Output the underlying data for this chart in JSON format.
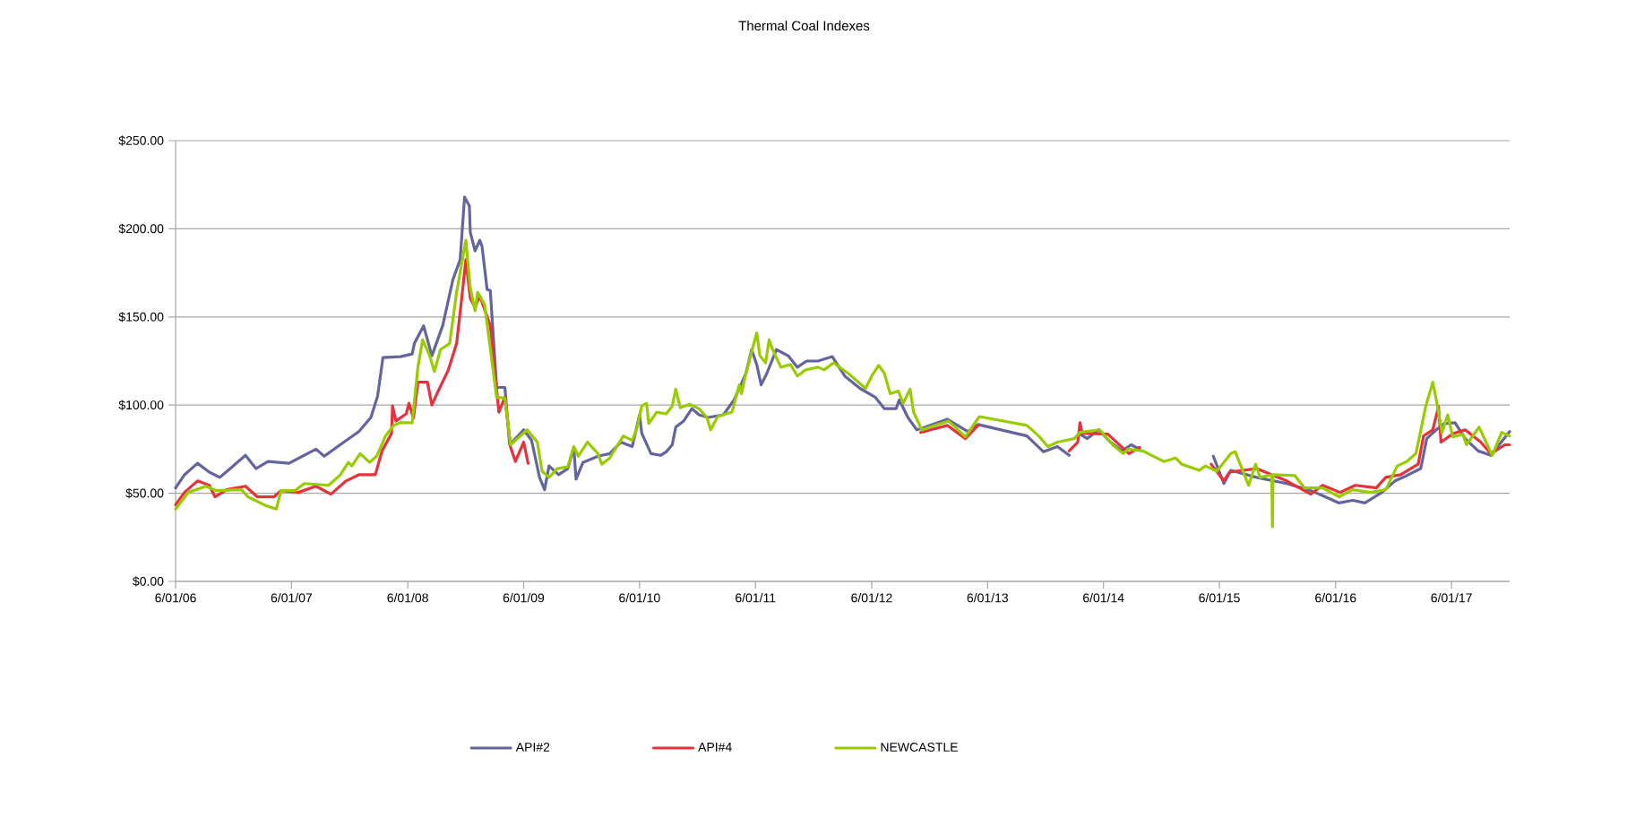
{
  "chart_data": {
    "type": "line",
    "title": "Thermal Coal Indexes",
    "xlim": [
      "2006-06-01",
      "2017-12-01"
    ],
    "xticks": [
      {
        "value": "2006-06-01",
        "label": "6/01/06"
      },
      {
        "value": "2007-06-01",
        "label": "6/01/07"
      },
      {
        "value": "2008-06-01",
        "label": "6/01/08"
      },
      {
        "value": "2009-06-01",
        "label": "6/01/09"
      },
      {
        "value": "2010-06-01",
        "label": "6/01/10"
      },
      {
        "value": "2011-06-01",
        "label": "6/01/11"
      },
      {
        "value": "2012-06-01",
        "label": "6/01/12"
      },
      {
        "value": "2013-06-01",
        "label": "6/01/13"
      },
      {
        "value": "2014-06-01",
        "label": "6/01/14"
      },
      {
        "value": "2015-06-01",
        "label": "6/01/15"
      },
      {
        "value": "2016-06-01",
        "label": "6/01/16"
      },
      {
        "value": "2017-06-01",
        "label": "6/01/17"
      }
    ],
    "ylim": [
      0,
      250
    ],
    "yticks": [
      {
        "value": 0,
        "label": "$0.00"
      },
      {
        "value": 50,
        "label": "$50.00"
      },
      {
        "value": 100,
        "label": "$100.00"
      },
      {
        "value": 150,
        "label": "$150.00"
      },
      {
        "value": 200,
        "label": "$200.00"
      },
      {
        "value": 250,
        "label": "$250.00"
      }
    ],
    "grid": "y",
    "legend": "bottom",
    "marker": "none",
    "line_style": "solid",
    "series": [
      {
        "name": "API#2",
        "color": "#64649f",
        "x": [
          "2006-06-01",
          "2006-06-29",
          "2006-08-09",
          "2006-09-15",
          "2006-10-18",
          "2006-11-20",
          "2007-01-07",
          "2007-02-09",
          "2007-03-19",
          "2007-05-24",
          "2007-08-17",
          "2007-09-12",
          "2007-11-13",
          "2007-12-30",
          "2008-02-06",
          "2008-02-27",
          "2008-03-15",
          "2008-05-09",
          "2008-06-15",
          "2008-06-22",
          "2008-07-21",
          "2008-08-16",
          "2008-09-19",
          "2008-10-21",
          "2008-11-13",
          "2008-11-27",
          "2008-12-12",
          "2008-12-15",
          "2008-12-30",
          "2009-01-14",
          "2009-01-21",
          "2009-02-06",
          "2009-02-16",
          "2009-03-08",
          "2009-04-03",
          "2009-04-18",
          "2009-06-01",
          "2009-06-26",
          "2009-07-21",
          "2009-08-06",
          "2009-08-20",
          "2009-09-19",
          "2009-10-18",
          "2009-11-06",
          "2009-11-13",
          "2009-12-05",
          "2010-01-21",
          "2010-02-27",
          "2010-04-03",
          "2010-05-09",
          "2010-06-01",
          "2010-06-08",
          "2010-07-07",
          "2010-08-06",
          "2010-08-24",
          "2010-09-12",
          "2010-09-23",
          "2010-10-18",
          "2010-11-13",
          "2010-12-05",
          "2011-01-03",
          "2011-02-20",
          "2011-03-26",
          "2011-05-02",
          "2011-05-20",
          "2011-06-05",
          "2011-06-19",
          "2011-07-07",
          "2011-08-06",
          "2011-09-12",
          "2011-10-11",
          "2011-11-09",
          "2011-12-15",
          "2012-01-29",
          "2012-03-08",
          "2012-04-25",
          "2012-06-12",
          "2012-07-11",
          "2012-08-17",
          "2012-08-27",
          "2012-09-23",
          "2012-10-21",
          "2012-11-09",
          "2013-01-25",
          "2013-03-30",
          "2013-05-02",
          "2013-10-03",
          "2013-11-24",
          "2014-01-07",
          "2014-02-13",
          "2014-03-01",
          "2014-03-19",
          "2014-04-11",
          "2014-05-17",
          "2014-06-23",
          "2014-07-29",
          "2014-08-27",
          "2014-09-23",
          "2015-01-01",
          "2015-05-13",
          "2015-06-15",
          "2015-07-07",
          "2015-09-26",
          "2015-12-30",
          "2016-03-15",
          "2016-04-29",
          "2016-06-12",
          "2016-07-25",
          "2016-09-01",
          "2016-10-25",
          "2016-12-05",
          "2017-01-11",
          "2017-02-24",
          "2017-03-15",
          "2017-04-14",
          "2017-05-09",
          "2017-06-12",
          "2017-07-14",
          "2017-08-24",
          "2017-10-03",
          "2017-10-29",
          "2017-12-01"
        ],
        "values": [
          53,
          60.5,
          67,
          62,
          59,
          64,
          71.5,
          64,
          68,
          67,
          75,
          71,
          79,
          85,
          93,
          105,
          127,
          127.5,
          129,
          135,
          145,
          128,
          145,
          171,
          182.5,
          218,
          213,
          198,
          187.5,
          193.5,
          190,
          165.5,
          165,
          110,
          110,
          77.5,
          86,
          80,
          59,
          52,
          65.5,
          60.5,
          64,
          76,
          58,
          67.5,
          71,
          72.5,
          79,
          76.5,
          94.5,
          84,
          72.5,
          71.5,
          73.5,
          77.5,
          87.5,
          91,
          98,
          94.5,
          93,
          94.5,
          103,
          118,
          131.5,
          123,
          111.5,
          118,
          131.5,
          128,
          121.5,
          125,
          125,
          127.5,
          116.5,
          109.5,
          104.5,
          98,
          98,
          103,
          93,
          86,
          87,
          92,
          85,
          89,
          82.5,
          73.5,
          76.5,
          71.5,
          null,
          83.5,
          81,
          86,
          79,
          74,
          77.5,
          75,
          null,
          71,
          55.5,
          63,
          59,
          55.5,
          51.5,
          48,
          44.5,
          46,
          44.5,
          50.5,
          57,
          60,
          64,
          81,
          86,
          89.5,
          90,
          81,
          74,
          71.5,
          77.5,
          85
        ]
      },
      {
        "name": "API#4",
        "color": "#e5323b",
        "x": [
          "2006-06-01",
          "2006-06-29",
          "2006-08-09",
          "2006-09-15",
          "2006-10-03",
          "2006-11-09",
          "2007-01-07",
          "2007-02-13",
          "2007-04-07",
          "2007-04-29",
          "2007-06-23",
          "2007-08-17",
          "2007-10-03",
          "2007-11-20",
          "2007-12-30",
          "2008-02-20",
          "2008-03-12",
          "2008-04-11",
          "2008-04-14",
          "2008-04-25",
          "2008-05-27",
          "2008-06-05",
          "2008-06-19",
          "2008-07-03",
          "2008-08-02",
          "2008-08-16",
          "2008-09-05",
          "2008-10-07",
          "2008-11-02",
          "2008-11-17",
          "2008-12-01",
          "2008-12-15",
          "2008-12-30",
          "2009-01-14",
          "2009-02-16",
          "2009-03-15",
          "2009-04-03",
          "2009-04-21",
          "2009-05-06",
          "2009-06-01",
          "2009-06-15",
          "2010-01-01",
          "2012-11-02",
          "2013-01-25",
          "2013-03-23",
          "2013-05-02",
          "2013-08-01",
          "2014-02-13",
          "2014-03-12",
          "2014-03-19",
          "2014-03-26",
          "2014-06-15",
          "2014-08-20",
          "2014-09-23",
          "2015-01-01",
          "2015-05-06",
          "2015-06-15",
          "2015-07-03",
          "2015-09-26",
          "2015-12-30",
          "2016-03-15",
          "2016-04-21",
          "2016-06-15",
          "2016-08-02",
          "2016-10-07",
          "2016-11-06",
          "2016-12-23",
          "2017-02-16",
          "2017-03-05",
          "2017-04-03",
          "2017-04-21",
          "2017-04-29",
          "2017-06-08",
          "2017-07-14",
          "2017-09-01",
          "2017-10-03",
          "2017-11-16",
          "2017-12-01"
        ],
        "values": [
          43.5,
          50.5,
          57,
          54.5,
          48,
          52,
          54,
          48,
          48,
          51.5,
          50.5,
          54,
          49.5,
          57,
          60.5,
          60.5,
          74,
          84,
          99.5,
          91,
          95,
          101,
          92.5,
          113,
          113,
          100,
          108,
          120,
          135,
          159,
          182.5,
          160.5,
          155.5,
          162,
          145,
          96,
          104.5,
          76,
          68,
          79,
          67,
          null,
          84.5,
          88.5,
          81,
          88.5,
          null,
          74,
          79,
          90,
          84,
          83.5,
          72.5,
          76,
          null,
          66.5,
          57,
          62,
          64,
          57,
          49.5,
          54.5,
          50.5,
          54.5,
          53,
          59,
          60.5,
          66.5,
          82.5,
          86,
          99,
          79,
          84,
          86,
          79,
          72.5,
          77.5,
          77.5
        ]
      },
      {
        "name": "NEWCASTLE",
        "color": "#99cc00",
        "x": [
          "2006-06-01",
          "2006-07-11",
          "2006-09-05",
          "2006-10-07",
          "2006-12-26",
          "2007-01-14",
          "2007-03-12",
          "2007-04-14",
          "2007-04-29",
          "2007-06-12",
          "2007-07-11",
          "2007-09-26",
          "2007-11-02",
          "2007-11-27",
          "2007-12-08",
          "2008-01-03",
          "2008-02-02",
          "2008-02-24",
          "2008-03-23",
          "2008-04-18",
          "2008-05-09",
          "2008-06-15",
          "2008-07-03",
          "2008-07-18",
          "2008-08-09",
          "2008-08-24",
          "2008-09-12",
          "2008-10-11",
          "2008-11-02",
          "2008-12-01",
          "2008-12-15",
          "2008-12-30",
          "2009-01-07",
          "2009-01-29",
          "2009-03-08",
          "2009-04-03",
          "2009-04-21",
          "2009-06-12",
          "2009-07-14",
          "2009-07-29",
          "2009-08-20",
          "2009-09-15",
          "2009-10-18",
          "2009-11-06",
          "2009-11-20",
          "2009-12-19",
          "2010-01-21",
          "2010-02-02",
          "2010-02-27",
          "2010-04-11",
          "2010-05-09",
          "2010-05-24",
          "2010-06-08",
          "2010-06-23",
          "2010-06-30",
          "2010-07-25",
          "2010-08-24",
          "2010-09-12",
          "2010-09-23",
          "2010-10-07",
          "2010-11-06",
          "2010-12-05",
          "2010-12-30",
          "2011-01-11",
          "2011-02-02",
          "2011-03-19",
          "2011-04-11",
          "2011-04-18",
          "2011-05-02",
          "2011-06-05",
          "2011-06-15",
          "2011-07-03",
          "2011-07-14",
          "2011-07-25",
          "2011-08-20",
          "2011-09-19",
          "2011-10-11",
          "2011-11-06",
          "2011-12-15",
          "2012-01-03",
          "2012-02-02",
          "2012-03-19",
          "2012-05-13",
          "2012-06-01",
          "2012-06-23",
          "2012-07-11",
          "2012-07-29",
          "2012-08-24",
          "2012-09-08",
          "2012-09-30",
          "2012-10-11",
          "2012-11-06",
          "2013-01-29",
          "2013-03-23",
          "2013-05-06",
          "2013-10-03",
          "2013-11-09",
          "2013-12-08",
          "2014-01-07",
          "2014-03-01",
          "2014-03-19",
          "2014-05-20",
          "2014-06-30",
          "2014-08-02",
          "2014-08-17",
          "2014-10-03",
          "2014-12-08",
          "2015-01-14",
          "2015-02-02",
          "2015-03-30",
          "2015-04-18",
          "2015-05-24",
          "2015-07-07",
          "2015-07-21",
          "2015-09-01",
          "2015-09-23",
          "2015-10-07",
          "2015-11-13",
          "2015-11-15",
          "2015-11-17",
          "2016-01-25",
          "2016-02-24",
          "2016-04-21",
          "2016-06-12",
          "2016-07-25",
          "2016-09-19",
          "2016-11-06",
          "2016-12-12",
          "2017-01-11",
          "2017-02-09",
          "2017-03-12",
          "2017-04-03",
          "2017-04-14",
          "2017-05-02",
          "2017-05-20",
          "2017-06-05",
          "2017-07-07",
          "2017-07-18",
          "2017-08-27",
          "2017-10-07",
          "2017-11-06",
          "2017-12-01"
        ],
        "values": [
          41,
          50.5,
          54,
          51.5,
          52,
          48,
          43,
          41,
          51.5,
          51.5,
          55.5,
          54.5,
          60.5,
          67.5,
          65.5,
          72.5,
          67.5,
          71,
          82.5,
          88.5,
          90,
          90,
          121.5,
          137,
          128,
          119,
          131.5,
          135,
          164,
          193.5,
          166.5,
          153.5,
          164,
          157,
          104.5,
          104,
          77.5,
          86,
          79,
          62.5,
          59,
          64,
          65,
          76.5,
          71,
          79,
          72.5,
          66.5,
          70,
          82.5,
          80,
          87,
          99.5,
          101,
          89.5,
          96,
          95,
          99.5,
          109,
          98.5,
          100.5,
          98,
          93,
          86,
          93.5,
          96,
          111.5,
          106.5,
          118,
          141,
          128,
          124,
          137,
          131.5,
          121.5,
          123,
          116.5,
          120,
          121.5,
          120,
          124,
          118,
          109.5,
          116.5,
          122.5,
          118,
          106.5,
          108,
          101,
          109,
          96,
          86,
          91,
          82,
          93.5,
          88.5,
          82.5,
          76.5,
          79,
          81,
          84.5,
          86,
          77.5,
          72.5,
          75,
          74,
          68,
          70,
          66.5,
          63,
          65.5,
          62.5,
          72.5,
          73.5,
          54.5,
          66.5,
          59,
          60.5,
          31,
          60.5,
          60,
          53,
          53,
          48,
          52,
          50.5,
          52,
          65.5,
          68,
          72.5,
          99.5,
          113,
          103,
          84.5,
          94.5,
          82,
          83.5,
          77.5,
          87.5,
          71.5,
          84.5,
          82.5
        ]
      }
    ]
  }
}
